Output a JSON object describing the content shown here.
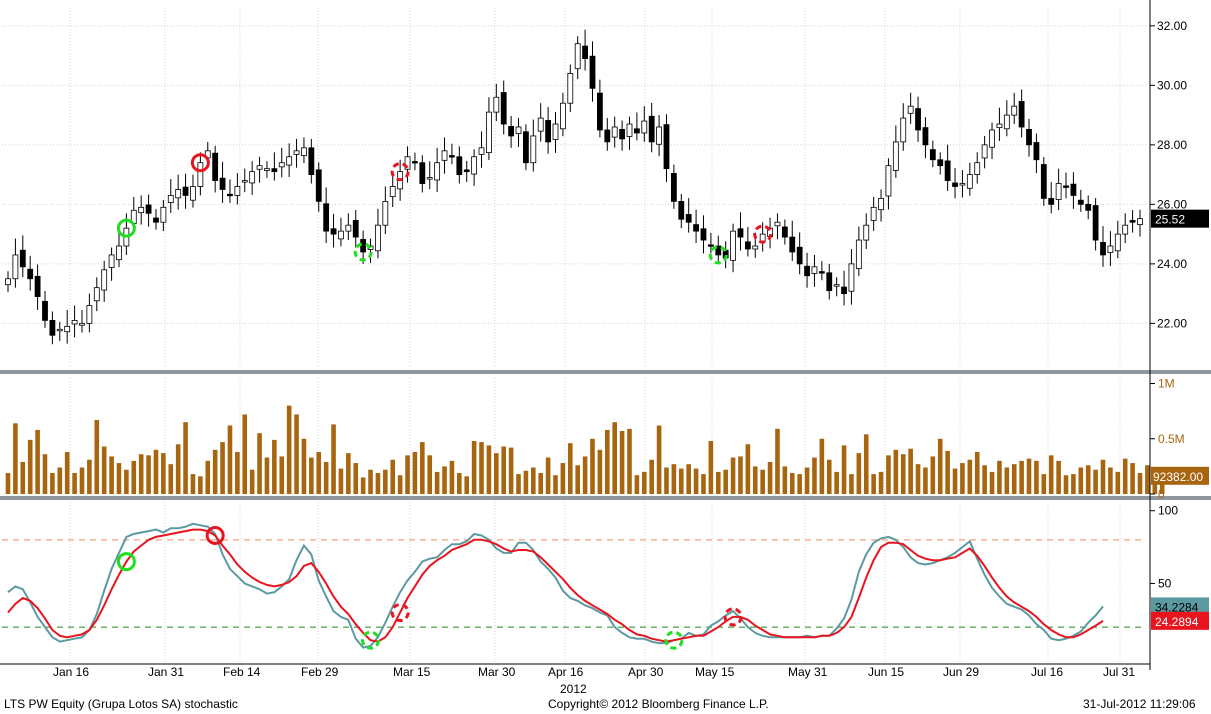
{
  "footer": {
    "left": "LTS PW Equity (Grupa Lotos SA) stochastic",
    "center": "Copyright© 2012 Bloomberg Finance L.P.",
    "right": "31-Jul-2012 11:29:06"
  },
  "chart_data": {
    "type": "candlestick",
    "x_axis": {
      "tick_labels": [
        "Jan 16",
        "Jan 31",
        "Feb 14",
        "Feb 29",
        "Mar 15",
        "Mar 30",
        "Apr 16",
        "Apr 30",
        "May 15",
        "May 31",
        "Jun 15",
        "Jun 29",
        "Jul 16",
        "Jul 31"
      ],
      "year_label": "2012"
    },
    "price_panel": {
      "ylim": [
        20.5,
        32.6
      ],
      "y_ticks": [
        "22.00",
        "24.00",
        "26.00",
        "28.00",
        "30.00",
        "32.00"
      ],
      "last_price_label": "25.52",
      "last_price": 25.52,
      "closes": [
        23.5,
        24.3,
        23.9,
        23.5,
        22.9,
        22.1,
        21.6,
        21.8,
        21.9,
        22.1,
        22.0,
        22.6,
        23.2,
        23.8,
        24.3,
        24.6,
        25.2,
        25.8,
        25.9,
        25.7,
        25.4,
        25.9,
        26.3,
        26.5,
        26.3,
        26.6,
        27.4,
        27.8,
        26.8,
        26.5,
        26.3,
        26.6,
        26.8,
        27.1,
        27.3,
        27.2,
        27.1,
        27.4,
        27.6,
        27.8,
        27.9,
        27.0,
        26.1,
        25.1,
        25.0,
        25.1,
        25.3,
        24.9,
        24.4,
        24.6,
        25.3,
        26.1,
        26.6,
        27.1,
        27.6,
        27.4,
        26.7,
        26.9,
        27.4,
        27.8,
        27.6,
        27.0,
        27.1,
        27.6,
        27.9,
        29.1,
        29.6,
        28.7,
        28.3,
        28.6,
        27.4,
        28.3,
        28.9,
        28.1,
        28.7,
        29.4,
        30.4,
        31.4,
        30.9,
        29.9,
        28.5,
        28.1,
        28.6,
        28.2,
        28.7,
        28.4,
        28.8,
        28.1,
        28.6,
        27.2,
        26.1,
        25.5,
        25.4,
        25.1,
        24.8,
        24.6,
        24.3,
        24.2,
        25.1,
        24.9,
        24.5,
        24.6,
        25.0,
        25.2,
        25.4,
        24.9,
        24.4,
        24.0,
        23.6,
        23.9,
        23.7,
        23.1,
        23.3,
        23.0,
        24.0,
        24.8,
        25.3,
        25.9,
        26.2,
        27.3,
        28.1,
        28.9,
        29.3,
        28.5,
        28.0,
        27.5,
        27.3,
        26.8,
        26.6,
        26.7,
        27.0,
        27.4,
        28.0,
        28.5,
        28.7,
        29.0,
        29.3,
        28.6,
        28.0,
        27.5,
        26.2,
        26.0,
        26.7,
        26.6,
        26.3,
        26.0,
        25.8,
        24.8,
        24.3,
        24.6,
        25.0,
        25.3,
        25.4,
        25.52
      ],
      "markers": [
        {
          "type": "buy",
          "date_index": 16,
          "style": "solid"
        },
        {
          "type": "sell",
          "date_index": 26,
          "style": "solid"
        },
        {
          "type": "buy",
          "date_index": 48,
          "style": "dashed"
        },
        {
          "type": "sell",
          "date_index": 53,
          "style": "dashed"
        },
        {
          "type": "buy",
          "date_index": 96,
          "style": "dashed"
        },
        {
          "type": "sell",
          "date_index": 102,
          "style": "dashed"
        }
      ]
    },
    "volume_panel": {
      "ylim": [
        0,
        1050000
      ],
      "y_ticks": [
        "0",
        "0.5M",
        "1M"
      ],
      "last_volume_label": "92382.00",
      "last_volume": 92382,
      "color": "#a8650f",
      "values": [
        190000,
        640000,
        290000,
        490000,
        580000,
        360000,
        190000,
        240000,
        380000,
        190000,
        240000,
        310000,
        670000,
        430000,
        340000,
        280000,
        220000,
        300000,
        360000,
        350000,
        400000,
        370000,
        270000,
        450000,
        650000,
        180000,
        160000,
        300000,
        400000,
        470000,
        620000,
        380000,
        720000,
        220000,
        550000,
        330000,
        490000,
        340000,
        800000,
        720000,
        500000,
        330000,
        380000,
        290000,
        630000,
        230000,
        370000,
        280000,
        150000,
        220000,
        190000,
        220000,
        310000,
        170000,
        350000,
        380000,
        470000,
        350000,
        200000,
        250000,
        300000,
        190000,
        160000,
        480000,
        470000,
        440000,
        370000,
        430000,
        420000,
        180000,
        210000,
        240000,
        190000,
        330000,
        170000,
        280000,
        460000,
        260000,
        340000,
        500000,
        400000,
        580000,
        650000,
        570000,
        590000,
        170000,
        200000,
        310000,
        620000,
        240000,
        270000,
        230000,
        270000,
        230000,
        180000,
        480000,
        200000,
        220000,
        330000,
        340000,
        450000,
        250000,
        220000,
        290000,
        590000,
        250000,
        190000,
        180000,
        240000,
        330000,
        500000,
        310000,
        200000,
        440000,
        180000,
        370000,
        540000,
        180000,
        200000,
        350000,
        400000,
        360000,
        410000,
        270000,
        240000,
        340000,
        500000,
        390000,
        230000,
        280000,
        310000,
        380000,
        260000,
        200000,
        300000,
        240000,
        270000,
        300000,
        320000,
        300000,
        180000,
        350000,
        300000,
        170000,
        180000,
        240000,
        260000,
        220000,
        310000,
        240000,
        200000,
        320000,
        280000,
        190000,
        260000,
        220000,
        92382
      ]
    },
    "stochastic_panel": {
      "ylim": [
        -4,
        106
      ],
      "y_ticks": [
        "50",
        "100"
      ],
      "upper_level": 80,
      "lower_level": 20,
      "k_label": "34.2284",
      "d_label": "24.2894",
      "k_color": "#5b9aa0",
      "d_color": "#e8141e",
      "k": [
        44,
        48,
        46,
        37,
        27,
        20,
        13,
        10,
        11,
        12,
        13,
        18,
        29,
        45,
        60,
        71,
        82,
        84,
        85,
        86,
        87,
        85,
        88,
        88,
        89,
        91,
        90,
        89,
        84,
        70,
        60,
        55,
        50,
        48,
        46,
        43,
        44,
        48,
        53,
        66,
        76,
        70,
        52,
        41,
        31,
        27,
        25,
        12,
        6,
        7,
        13,
        23,
        34,
        44,
        52,
        58,
        65,
        67,
        68,
        73,
        77,
        77,
        79,
        84,
        83,
        80,
        74,
        71,
        71,
        78,
        78,
        73,
        65,
        60,
        54,
        45,
        40,
        38,
        35,
        33,
        30,
        28,
        20,
        16,
        13,
        12,
        12,
        10,
        9,
        9,
        11,
        12,
        16,
        14,
        15,
        21,
        24,
        28,
        31,
        26,
        20,
        16,
        14,
        13,
        13,
        13,
        13,
        13,
        14,
        13,
        14,
        14,
        19,
        26,
        39,
        58,
        70,
        78,
        81,
        82,
        80,
        75,
        68,
        64,
        63,
        64,
        66,
        68,
        71,
        75,
        79,
        67,
        56,
        47,
        41,
        36,
        34,
        32,
        28,
        22,
        18,
        12,
        11,
        12,
        14,
        17,
        23,
        28,
        34.23
      ],
      "d": [
        30,
        36,
        40,
        38,
        33,
        26,
        18,
        14,
        13,
        14,
        15,
        18,
        25,
        35,
        46,
        56,
        65,
        72,
        76,
        80,
        82,
        83,
        84,
        85,
        86,
        87,
        87,
        86,
        83,
        76,
        70,
        63,
        58,
        54,
        51,
        49,
        48,
        49,
        51,
        55,
        62,
        64,
        58,
        50,
        41,
        34,
        29,
        22,
        16,
        11,
        10,
        13,
        20,
        30,
        40,
        48,
        56,
        62,
        66,
        69,
        73,
        75,
        77,
        80,
        80,
        79,
        77,
        74,
        72,
        73,
        73,
        72,
        68,
        63,
        58,
        53,
        47,
        42,
        38,
        35,
        32,
        29,
        25,
        22,
        18,
        15,
        14,
        12,
        11,
        10,
        11,
        12,
        13,
        14,
        14,
        17,
        20,
        24,
        27,
        27,
        25,
        21,
        18,
        15,
        14,
        13,
        13,
        13,
        13,
        13,
        14,
        14,
        16,
        20,
        27,
        40,
        54,
        66,
        75,
        78,
        78,
        77,
        73,
        69,
        67,
        66,
        66,
        67,
        68,
        71,
        74,
        69,
        62,
        54,
        47,
        41,
        37,
        34,
        31,
        27,
        22,
        18,
        15,
        13,
        13,
        15,
        18,
        21,
        24.29
      ],
      "markers": [
        {
          "type": "buy",
          "date_index": 16,
          "style": "solid"
        },
        {
          "type": "sell",
          "date_index": 28,
          "style": "solid"
        },
        {
          "type": "buy",
          "date_index": 49,
          "style": "dashed"
        },
        {
          "type": "sell",
          "date_index": 53,
          "style": "dashed"
        },
        {
          "type": "buy",
          "date_index": 90,
          "style": "dashed"
        },
        {
          "type": "sell",
          "date_index": 98,
          "style": "dashed"
        }
      ]
    }
  }
}
